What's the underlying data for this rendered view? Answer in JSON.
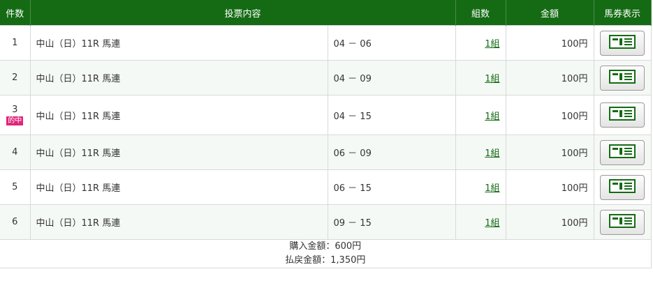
{
  "header": {
    "count": "件数",
    "content": "投票内容",
    "combos": "組数",
    "amount": "金額",
    "ticket": "馬券表示"
  },
  "rows": [
    {
      "no": "1",
      "race": "中山（日）11R 馬連",
      "pick": "04 － 06",
      "combos": "1組",
      "amount": "100円",
      "hit": ""
    },
    {
      "no": "2",
      "race": "中山（日）11R 馬連",
      "pick": "04 － 09",
      "combos": "1組",
      "amount": "100円",
      "hit": ""
    },
    {
      "no": "3",
      "race": "中山（日）11R 馬連",
      "pick": "04 － 15",
      "combos": "1組",
      "amount": "100円",
      "hit": "的中"
    },
    {
      "no": "4",
      "race": "中山（日）11R 馬連",
      "pick": "06 － 09",
      "combos": "1組",
      "amount": "100円",
      "hit": ""
    },
    {
      "no": "5",
      "race": "中山（日）11R 馬連",
      "pick": "06 － 15",
      "combos": "1組",
      "amount": "100円",
      "hit": ""
    },
    {
      "no": "6",
      "race": "中山（日）11R 馬連",
      "pick": "09 － 15",
      "combos": "1組",
      "amount": "100円",
      "hit": ""
    }
  ],
  "footer": {
    "purchase": "購入金額：600円",
    "payout": "払戻金額：1,350円"
  },
  "colors": {
    "header": "#146b14",
    "hit": "#e0247a"
  }
}
